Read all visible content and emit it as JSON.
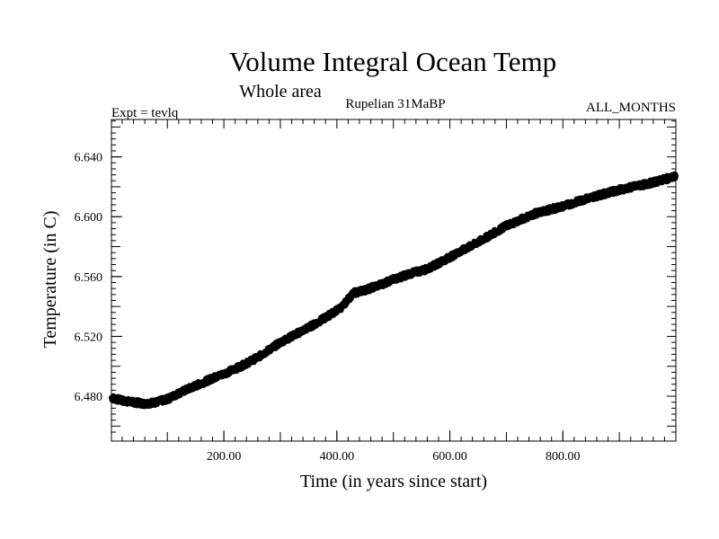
{
  "chart_data": {
    "type": "line",
    "title": "Volume Integral Ocean Temp",
    "subtitle": "Whole area",
    "annotations": {
      "left": "Expt = tevlq",
      "center": "Rupelian  31MaBP",
      "right": "ALL_MONTHS"
    },
    "xlabel": "Time (in years since start)",
    "ylabel": "Temperature (in C)",
    "xlim": [
      1,
      1000
    ],
    "ylim": [
      6.45,
      6.665
    ],
    "xticks": [
      200,
      400,
      600,
      800
    ],
    "xtick_labels": [
      "200.00",
      "400.00",
      "600.00",
      "800.00"
    ],
    "yticks": [
      6.48,
      6.52,
      6.56,
      6.6,
      6.64
    ],
    "ytick_labels": [
      "6.480",
      "6.520",
      "6.560",
      "6.600",
      "6.640"
    ],
    "grid": false,
    "series": [
      {
        "name": "Volume Integral Ocean Temp",
        "x": [
          1,
          20,
          40,
          60,
          80,
          100,
          120,
          150,
          180,
          200,
          230,
          260,
          300,
          330,
          360,
          390,
          410,
          420,
          430,
          450,
          480,
          500,
          530,
          560,
          600,
          650,
          700,
          750,
          800,
          850,
          900,
          950,
          1000
        ],
        "values": [
          6.479,
          6.477,
          6.476,
          6.475,
          6.476,
          6.478,
          6.482,
          6.487,
          6.492,
          6.495,
          6.5,
          6.506,
          6.516,
          6.522,
          6.528,
          6.535,
          6.54,
          6.545,
          6.549,
          6.551,
          6.555,
          6.558,
          6.562,
          6.565,
          6.573,
          6.583,
          6.594,
          6.602,
          6.607,
          6.613,
          6.618,
          6.622,
          6.627
        ]
      }
    ]
  }
}
